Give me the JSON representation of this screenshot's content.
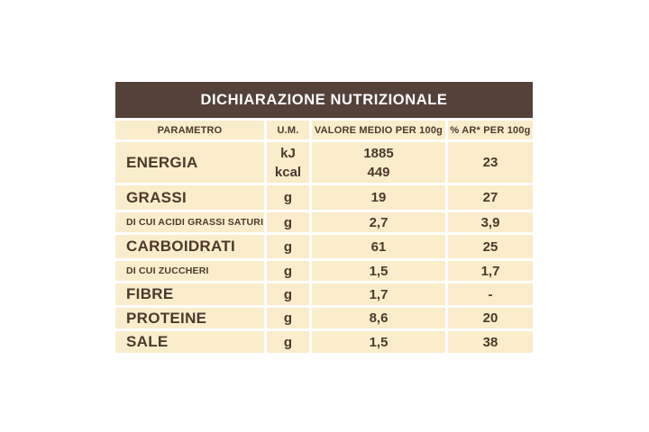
{
  "page": {
    "background": "#FFFFFF"
  },
  "colors": {
    "title_bg": "#544239",
    "title_text": "#FFFFFF",
    "cell_bg": "#FAEDCB",
    "cell_text": "#4A392E",
    "gap": "#FFFFFF"
  },
  "table": {
    "title": "DICHIARAZIONE NUTRIZIONALE",
    "headers": {
      "parametro": "PARAMETRO",
      "um": "U.M.",
      "valore": "VALORE MEDIO PER 100g",
      "ar": "% AR* PER 100g"
    },
    "rows": [
      {
        "parametro": "ENERGIA",
        "um": [
          "kJ",
          "kcal"
        ],
        "valore": [
          "1885",
          "449"
        ],
        "ar": "23"
      },
      {
        "parametro": "GRASSI",
        "um": "g",
        "valore": "19",
        "ar": "27"
      },
      {
        "parametro": "DI CUI ACIDI GRASSI SATURI",
        "um": "g",
        "valore": "2,7",
        "ar": "3,9"
      },
      {
        "parametro": "CARBOIDRATI",
        "um": "g",
        "valore": "61",
        "ar": "25"
      },
      {
        "parametro": "DI CUI ZUCCHERI",
        "um": "g",
        "valore": "1,5",
        "ar": "1,7"
      },
      {
        "parametro": "FIBRE",
        "um": "g",
        "valore": "1,7",
        "ar": "-"
      },
      {
        "parametro": "PROTEINE",
        "um": "g",
        "valore": "8,6",
        "ar": "20"
      },
      {
        "parametro": "SALE",
        "um": "g",
        "valore": "1,5",
        "ar": "38"
      }
    ]
  }
}
